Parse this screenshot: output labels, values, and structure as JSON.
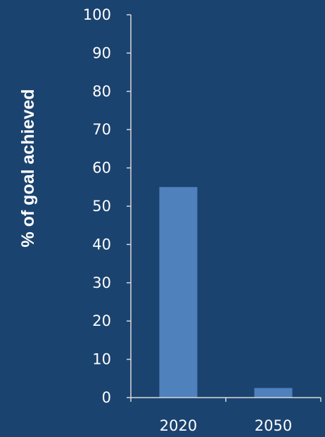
{
  "chart_data": {
    "type": "bar",
    "categories": [
      "2020",
      "2050"
    ],
    "values": [
      55,
      2.5
    ],
    "ylabel": "% of goal achieved",
    "ylim": [
      0,
      100
    ],
    "yticks": [
      0,
      10,
      20,
      30,
      40,
      50,
      60,
      70,
      80,
      90,
      100
    ],
    "grid": false,
    "legend": "none"
  },
  "colors": {
    "background": "#1b436f",
    "bar": "#4f81bd",
    "axis": "#d9d9d9",
    "text": "#ffffff"
  }
}
